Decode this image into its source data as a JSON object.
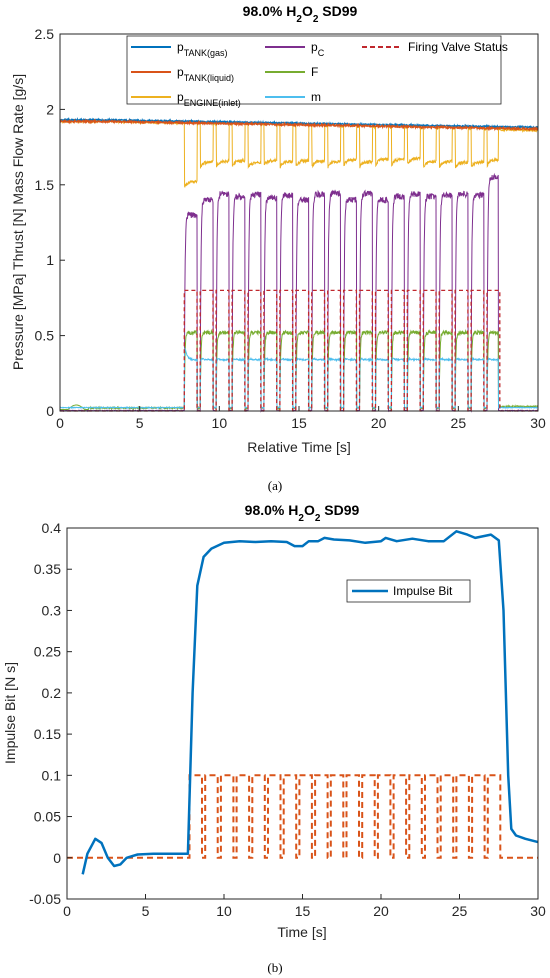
{
  "colors": {
    "tank_gas": "#0072BD",
    "tank_liquid": "#D95319",
    "engine_inlet": "#EDB120",
    "pc": "#7E2F8E",
    "thrust": "#77AC30",
    "mdot": "#4DBEEE",
    "valve": "#C0282D",
    "impulse": "#0072BD",
    "impulse_valve": "#D95319"
  },
  "captions": {
    "a": "(a)",
    "b": "(b)"
  },
  "chart_data": [
    {
      "type": "line",
      "title": "98.0% H₂O₂ SD99",
      "title_main": "98.0% H",
      "title_sub1": "2",
      "title_mid": "O",
      "title_sub2": "2",
      "title_tail": " SD99",
      "xlabel": "Relative Time [s]",
      "ylabel": "Pressure [MPa] Thrust [N] Mass Flow Rate [g/s]",
      "xlim": [
        0,
        30
      ],
      "ylim": [
        0,
        2.5
      ],
      "xticks": [
        "0",
        "5",
        "10",
        "15",
        "20",
        "25",
        "30"
      ],
      "yticks": [
        "0",
        "0.5",
        "1",
        "1.5",
        "2",
        "2.5"
      ],
      "grid": false,
      "legend_placement": "top",
      "legend": [
        {
          "key": "tank_gas",
          "base": "p",
          "sub": "TANK(gas)",
          "style": "solid"
        },
        {
          "key": "tank_liquid",
          "base": "p",
          "sub": "TANK(liquid)",
          "style": "solid"
        },
        {
          "key": "engine_inlet",
          "base": "p",
          "sub": "ENGINE(inlet)",
          "style": "solid"
        },
        {
          "key": "pc",
          "base": "p",
          "sub": "C",
          "style": "solid"
        },
        {
          "key": "thrust",
          "base": "F",
          "sub": "",
          "style": "solid"
        },
        {
          "key": "mdot",
          "base": "m",
          "sub": "",
          "style": "solid"
        },
        {
          "key": "valve",
          "base": "Firing Valve Status",
          "sub": "",
          "style": "dashed"
        }
      ],
      "pulses": {
        "count": 20,
        "first_start": 7.8,
        "period": 1.0,
        "on_time": 0.8,
        "end": 27.5
      },
      "series": [
        {
          "key": "tank_gas",
          "steady": 1.93,
          "end_value": 1.88
        },
        {
          "key": "tank_liquid",
          "steady": 1.92,
          "end_value": 1.87
        },
        {
          "key": "engine_inlet",
          "steady": 1.92,
          "on_value": 1.66,
          "first_dip": 1.52
        },
        {
          "key": "pc",
          "off_value": 0.0,
          "on_value": 1.42,
          "first_on": 1.3,
          "last_on": 1.55
        },
        {
          "key": "thrust",
          "off_value": 0.0,
          "on_value": 0.52,
          "end_value": 0.03
        },
        {
          "key": "mdot",
          "off_value": 0.02,
          "on_value": 0.34,
          "first_peak": 0.47
        },
        {
          "key": "valve",
          "off_value": 0.0,
          "on_value": 0.8
        }
      ]
    },
    {
      "type": "line",
      "title": "98.0% H₂O₂ SD99",
      "title_main": "98.0% H",
      "title_sub1": "2",
      "title_mid": "O",
      "title_sub2": "2",
      "title_tail": " SD99",
      "xlabel": "Time [s]",
      "ylabel": "Impulse Bit [N s]",
      "xlim": [
        0,
        30
      ],
      "ylim": [
        -0.05,
        0.4
      ],
      "xticks": [
        "0",
        "5",
        "10",
        "15",
        "20",
        "25",
        "30"
      ],
      "yticks": [
        "-0.05",
        "0",
        "0.05",
        "0.1",
        "0.15",
        "0.2",
        "0.25",
        "0.3",
        "0.35",
        "0.4"
      ],
      "grid": false,
      "legend_placement": "upper-right-inside",
      "legend": [
        {
          "key": "impulse",
          "label": "Impulse Bit",
          "style": "solid"
        }
      ],
      "series": [
        {
          "key": "impulse",
          "name": "Impulse Bit",
          "points": [
            [
              1.0,
              -0.02
            ],
            [
              1.3,
              0.005
            ],
            [
              1.8,
              0.023
            ],
            [
              2.2,
              0.018
            ],
            [
              2.6,
              0.0
            ],
            [
              3.0,
              -0.01
            ],
            [
              3.4,
              -0.008
            ],
            [
              3.8,
              0.0
            ],
            [
              4.5,
              0.004
            ],
            [
              5.5,
              0.005
            ],
            [
              7.0,
              0.005
            ],
            [
              7.7,
              0.005
            ],
            [
              8.0,
              0.2
            ],
            [
              8.3,
              0.33
            ],
            [
              8.7,
              0.365
            ],
            [
              9.2,
              0.375
            ],
            [
              10,
              0.382
            ],
            [
              11,
              0.384
            ],
            [
              12,
              0.383
            ],
            [
              13,
              0.384
            ],
            [
              14,
              0.383
            ],
            [
              14.5,
              0.378
            ],
            [
              15,
              0.378
            ],
            [
              15.4,
              0.384
            ],
            [
              16,
              0.384
            ],
            [
              16.4,
              0.388
            ],
            [
              17,
              0.386
            ],
            [
              18,
              0.385
            ],
            [
              19,
              0.382
            ],
            [
              20,
              0.384
            ],
            [
              20.3,
              0.388
            ],
            [
              21,
              0.384
            ],
            [
              22,
              0.387
            ],
            [
              23,
              0.384
            ],
            [
              24,
              0.384
            ],
            [
              24.8,
              0.396
            ],
            [
              25.5,
              0.392
            ],
            [
              26,
              0.388
            ],
            [
              27,
              0.392
            ],
            [
              27.5,
              0.385
            ],
            [
              27.8,
              0.3
            ],
            [
              28.1,
              0.1
            ],
            [
              28.3,
              0.035
            ],
            [
              28.6,
              0.027
            ],
            [
              29.2,
              0.023
            ],
            [
              30,
              0.019
            ]
          ]
        },
        {
          "key": "impulse_valve",
          "off_value": 0.0,
          "on_value": 0.1,
          "lead_end": 7.8,
          "pulse_count": 20
        }
      ]
    }
  ]
}
